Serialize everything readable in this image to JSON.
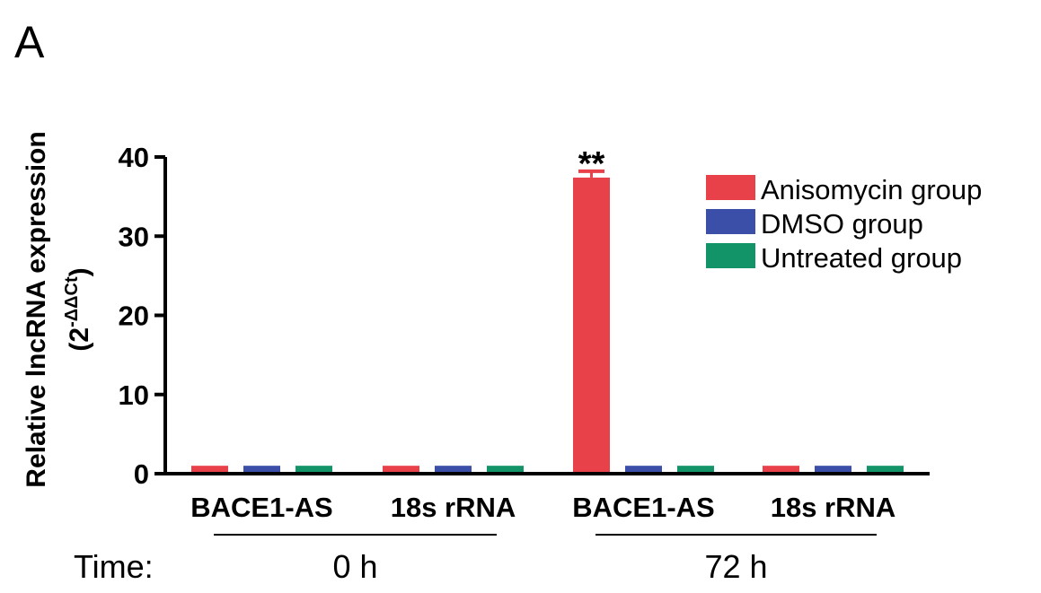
{
  "panel_label": "A",
  "time_label": "Time:",
  "colors": {
    "anisomycin": "#e8414a",
    "dmso": "#3b4fa8",
    "untreated": "#129468"
  },
  "chart_data": {
    "type": "bar",
    "ylabel_main": "Relative lncRNA expression",
    "ylabel_sub": "(2",
    "ylabel_sup": "-ΔΔCt",
    "ylabel_close": ")",
    "ylim": [
      0,
      40
    ],
    "yticks": [
      "0",
      "10",
      "20",
      "30",
      "40"
    ],
    "categories": [
      "BACE1-AS",
      "18s rRNA",
      "BACE1-AS",
      "18s rRNA"
    ],
    "time_groups": [
      {
        "label": "0 h",
        "categories": [
          0,
          1
        ]
      },
      {
        "label": "72 h",
        "categories": [
          2,
          3
        ]
      }
    ],
    "series": [
      {
        "name": "Anisomycin group",
        "color": "#e8414a",
        "values": [
          1,
          1,
          37.4,
          1
        ],
        "errors": [
          0,
          0,
          0.8,
          0
        ]
      },
      {
        "name": "DMSO group",
        "color": "#3b4fa8",
        "values": [
          1,
          1,
          1,
          1
        ],
        "errors": [
          0,
          0,
          0,
          0
        ]
      },
      {
        "name": "Untreated group",
        "color": "#129468",
        "values": [
          1,
          1,
          1,
          1
        ],
        "errors": [
          0,
          0,
          0,
          0
        ]
      }
    ],
    "annotations": [
      {
        "text": "**",
        "category": 2,
        "series": 0
      }
    ],
    "legend_position": "top-right"
  }
}
